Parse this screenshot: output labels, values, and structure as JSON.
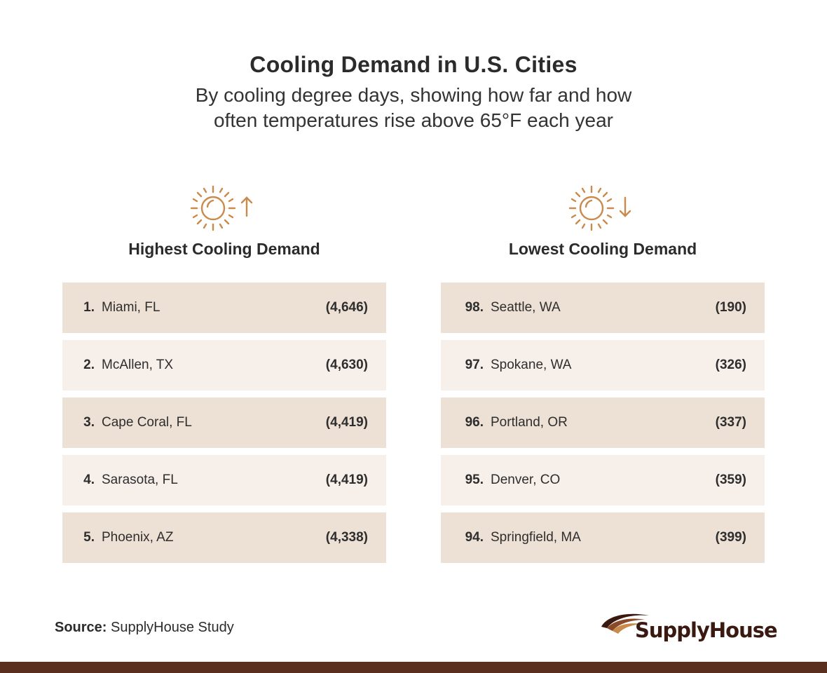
{
  "header": {
    "title": "Cooling Demand in U.S. Cities",
    "subtitle_line1": "By cooling degree days, showing how far and how",
    "subtitle_line2": "often temperatures rise above 65°F each year"
  },
  "columns": {
    "highest": {
      "title": "Highest Cooling Demand",
      "icon": "sun-arrow-up-icon",
      "rows": [
        {
          "rank": "1.",
          "city": "Miami, FL",
          "value": "(4,646)"
        },
        {
          "rank": "2.",
          "city": "McAllen, TX",
          "value": "(4,630)"
        },
        {
          "rank": "3.",
          "city": "Cape Coral, FL",
          "value": "(4,419)"
        },
        {
          "rank": "4.",
          "city": "Sarasota, FL",
          "value": "(4,419)"
        },
        {
          "rank": "5.",
          "city": "Phoenix, AZ",
          "value": "(4,338)"
        }
      ]
    },
    "lowest": {
      "title": "Lowest Cooling Demand",
      "icon": "sun-arrow-down-icon",
      "rows": [
        {
          "rank": "98.",
          "city": "Seattle, WA",
          "value": "(190)"
        },
        {
          "rank": "97.",
          "city": "Spokane, WA",
          "value": "(326)"
        },
        {
          "rank": "96.",
          "city": "Portland, OR",
          "value": "(337)"
        },
        {
          "rank": "95.",
          "city": "Denver, CO",
          "value": "(359)"
        },
        {
          "rank": "94.",
          "city": "Springfield, MA",
          "value": "(399)"
        }
      ]
    }
  },
  "footer": {
    "source_label": "Source:",
    "source_text": "SupplyHouse Study",
    "logo_text": "SupplyHouse"
  },
  "colors": {
    "accent": "#c98a4b",
    "row_dark": "#ede0d4",
    "row_light": "#f7efea",
    "brand": "#5a2f20"
  }
}
